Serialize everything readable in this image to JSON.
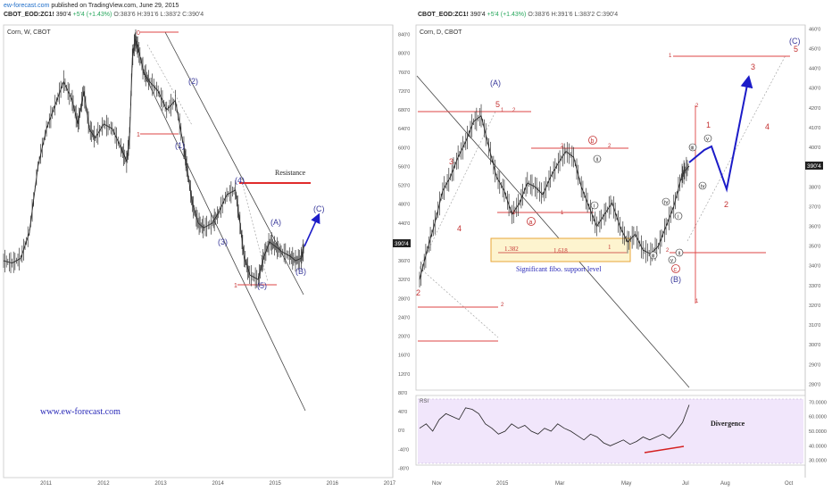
{
  "header": {
    "brand": "ew-forecast.com",
    "published": "published on TradingView.com, June 29, 2015"
  },
  "quote": {
    "symbol": "CBOT_EOD:ZC1!",
    "last": "390'4",
    "change": "+5'4 (+1.43%)",
    "open": "O:383'6",
    "high": "H:391'6",
    "low": "L:383'2",
    "close": "C:390'4"
  },
  "colors": {
    "wave_blue": "#3b3b9c",
    "wave_red": "#c43232",
    "arrow_blue": "#1c1cc8",
    "rsi_fill": "#f1e6fb",
    "fibo_box": "#fdf4cf",
    "fibo_border": "#e8a63a",
    "resistance": "#e02b2b",
    "rsi_div": "#d42020"
  },
  "chart_data": [
    {
      "type": "line",
      "title": "Corn, W, CBOT",
      "timeframe": "weekly",
      "x_ticks": [
        "2011",
        "2012",
        "2013",
        "2014",
        "2015",
        "2016",
        "2017"
      ],
      "y_ticks": [
        "840'0",
        "800'0",
        "760'0",
        "720'0",
        "680'0",
        "640'0",
        "600'0",
        "560'0",
        "520'0",
        "480'0",
        "440'0",
        "400'0",
        "360'0",
        "320'0",
        "280'0",
        "240'0",
        "200'0",
        "160'0",
        "120'0",
        "80'0",
        "40'0",
        "0'0",
        "-40'0",
        "-80'0"
      ],
      "ylim": [
        -100,
        860
      ],
      "last_value_label": "390'4",
      "series": [
        {
          "x": [
            2010.25,
            2010.4,
            2010.55,
            2010.7,
            2010.85,
            2011.0,
            2011.15,
            2011.3,
            2011.45,
            2011.55,
            2011.65,
            2011.75,
            2011.85,
            2012.0,
            2012.15,
            2012.3,
            2012.4,
            2012.45,
            2012.5,
            2012.55,
            2012.6,
            2012.7,
            2012.8,
            2012.95,
            2013.1,
            2013.25,
            2013.4,
            2013.45,
            2013.55,
            2013.65,
            2013.75,
            2013.9,
            2014.0,
            2014.15,
            2014.3,
            2014.38,
            2014.45,
            2014.55,
            2014.7,
            2014.8,
            2014.9,
            2015.0,
            2015.1,
            2015.25,
            2015.35,
            2015.45,
            2015.5
          ],
          "values": [
            360,
            355,
            365,
            420,
            560,
            640,
            690,
            740,
            700,
            650,
            720,
            640,
            620,
            650,
            640,
            600,
            570,
            620,
            790,
            830,
            810,
            760,
            740,
            720,
            680,
            700,
            600,
            560,
            480,
            440,
            430,
            440,
            460,
            500,
            510,
            440,
            370,
            330,
            320,
            370,
            400,
            390,
            380,
            370,
            360,
            365,
            390
          ]
        }
      ],
      "annotations": [
        {
          "text": "0",
          "x": 2012.55,
          "y": 840,
          "color": "red"
        },
        {
          "text": "1",
          "x": 2012.55,
          "y": 630,
          "color": "red"
        },
        {
          "text": "(1)",
          "x": 2012.78,
          "y": 590,
          "color": "blue"
        },
        {
          "text": "(2)",
          "x": 2013.48,
          "y": 715,
          "color": "blue"
        },
        {
          "text": "(3)",
          "x": 2014.0,
          "y": 415,
          "color": "blue"
        },
        {
          "text": "(4)",
          "x": 2014.35,
          "y": 525,
          "color": "blue"
        },
        {
          "text": "(5)",
          "x": 2014.75,
          "y": 310,
          "color": "blue"
        },
        {
          "text": "1",
          "x": 2014.32,
          "y": 312,
          "color": "red"
        },
        {
          "text": "(A)",
          "x": 2014.95,
          "y": 447,
          "color": "blue"
        },
        {
          "text": "(B)",
          "x": 2015.35,
          "y": 330,
          "color": "blue"
        },
        {
          "text": "(C)",
          "x": 2015.72,
          "y": 465,
          "color": "blue"
        },
        {
          "text": "Resistance",
          "x": 2014.98,
          "y": 540,
          "color": "black"
        }
      ],
      "watermark": "www.ew-forecast.com"
    },
    {
      "type": "line",
      "title": "Corn, D, CBOT",
      "timeframe": "daily",
      "x_ticks": [
        "Nov",
        "2015",
        "Mar",
        "May",
        "Jul",
        "Aug",
        "Oct"
      ],
      "y_ticks": [
        "460'0",
        "450'0",
        "440'0",
        "430'0",
        "420'0",
        "410'0",
        "400'0",
        "390'0",
        "380'0",
        "370'0",
        "360'0",
        "350'0",
        "340'0",
        "330'0",
        "320'0",
        "310'0",
        "300'0",
        "290'0",
        "280'0"
      ],
      "ylim": [
        277,
        462
      ],
      "last_value_label": "390'4",
      "series": [
        {
          "x": [
            0,
            5,
            10,
            15,
            20,
            25,
            30,
            35,
            40,
            45,
            50,
            55,
            60,
            65,
            70,
            75,
            80,
            85,
            90,
            95,
            100,
            105,
            110,
            115,
            120,
            125,
            130,
            135,
            140,
            145,
            150,
            155,
            160,
            165,
            170,
            172,
            175
          ],
          "values": [
            333,
            348,
            362,
            378,
            385,
            395,
            403,
            413,
            416,
            400,
            385,
            378,
            366,
            372,
            382,
            380,
            376,
            385,
            392,
            398,
            395,
            380,
            370,
            360,
            366,
            372,
            360,
            352,
            356,
            348,
            346,
            350,
            360,
            370,
            385,
            388,
            390.5
          ]
        }
      ],
      "annotations": [
        {
          "text": "(A)",
          "color": "blue"
        },
        {
          "text": "5",
          "color": "red"
        },
        {
          "text": "3",
          "color": "red"
        },
        {
          "text": "4",
          "color": "red"
        },
        {
          "text": "2",
          "color": "red"
        },
        {
          "text": "a",
          "color": "red"
        },
        {
          "text": "b",
          "color": "red"
        },
        {
          "text": "c",
          "color": "red"
        },
        {
          "text": "i",
          "color": "black"
        },
        {
          "text": "ii",
          "color": "black"
        },
        {
          "text": "iii",
          "color": "black"
        },
        {
          "text": "iv",
          "color": "black"
        },
        {
          "text": "v",
          "color": "black"
        },
        {
          "text": "(B)",
          "color": "blue"
        },
        {
          "text": "(C)",
          "color": "blue"
        }
      ],
      "fibo_levels": [
        "1.382",
        "1.618",
        "1"
      ],
      "fibo_note": "Significant fibo. support level",
      "forecast_labels": {
        "one": "1",
        "two": "2",
        "three": "3",
        "four": "4",
        "five": "5"
      }
    },
    {
      "type": "line",
      "title": "RSI",
      "y_ticks": [
        "70.0000",
        "60.0000",
        "50.0000",
        "40.0000",
        "30.0000"
      ],
      "ylim": [
        28,
        72
      ],
      "note": "Divergence",
      "series": [
        {
          "values": [
            52,
            55,
            50,
            58,
            62,
            60,
            58,
            66,
            65,
            62,
            55,
            52,
            48,
            50,
            55,
            52,
            54,
            50,
            48,
            52,
            50,
            55,
            52,
            50,
            47,
            44,
            48,
            46,
            42,
            40,
            42,
            44,
            41,
            43,
            46,
            44,
            46,
            48,
            45,
            50,
            56,
            68
          ]
        }
      ]
    }
  ]
}
